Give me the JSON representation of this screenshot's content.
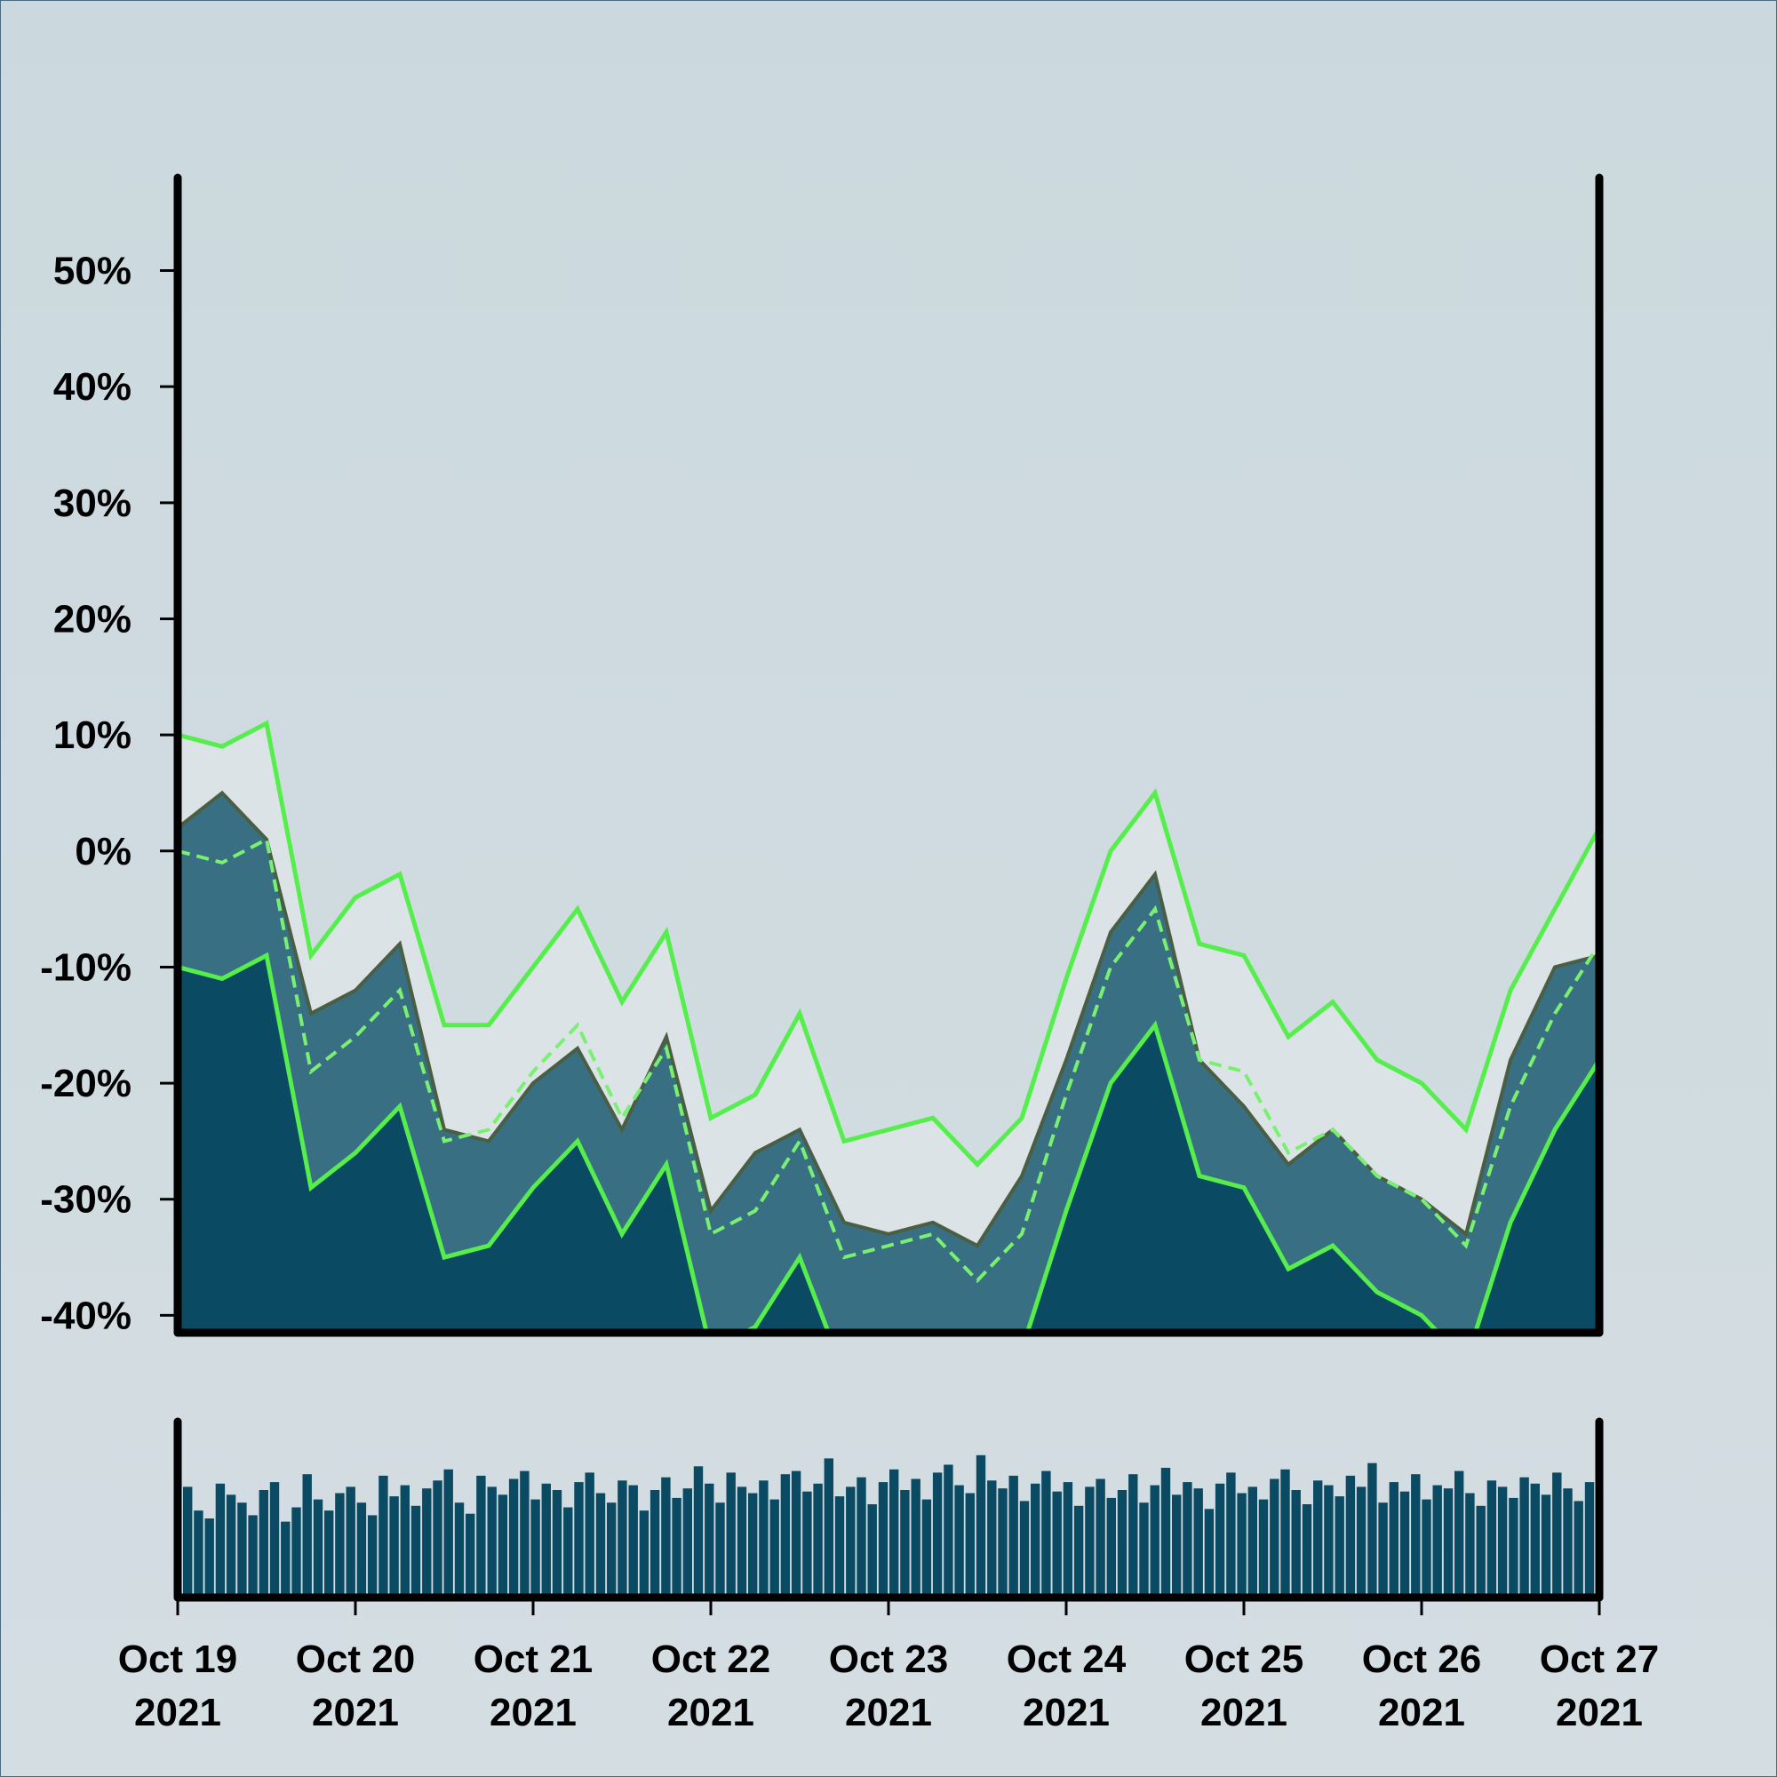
{
  "chart_data": [
    {
      "type": "area",
      "title": "",
      "xlabel": "",
      "ylabel": "",
      "ylim": [
        -41.5,
        58
      ],
      "y_ticks": [
        "-40%",
        "-30%",
        "-20%",
        "-10%",
        "0%",
        "10%",
        "20%",
        "30%",
        "40%",
        "50%"
      ],
      "y_tick_values": [
        -40,
        -30,
        -20,
        -10,
        0,
        10,
        20,
        30,
        40,
        50
      ],
      "x_ticks": [
        {
          "line1": "Oct 19",
          "line2": "2021"
        },
        {
          "line1": "Oct 20",
          "line2": "2021"
        },
        {
          "line1": "Oct 21",
          "line2": "2021"
        },
        {
          "line1": "Oct 22",
          "line2": "2021"
        },
        {
          "line1": "Oct 23",
          "line2": "2021"
        },
        {
          "line1": "Oct 24",
          "line2": "2021"
        },
        {
          "line1": "Oct 25",
          "line2": "2021"
        },
        {
          "line1": "Oct 26",
          "line2": "2021"
        },
        {
          "line1": "Oct 27",
          "line2": "2021"
        }
      ],
      "x_tick_values": [
        "2021-10-19",
        "2021-10-20",
        "2021-10-21",
        "2021-10-22",
        "2021-10-23",
        "2021-10-24",
        "2021-10-25",
        "2021-10-26",
        "2021-10-27"
      ],
      "grid": false,
      "colors": {
        "price_fill": "#386f82",
        "price_line": "#4a5e44",
        "band_fill": "#dce3e6",
        "lower_fill": "#0a4a62",
        "band_line": "#55ee4d",
        "mid_line": "#7af072"
      },
      "x": [
        "2021-10-19 00:00",
        "2021-10-19 06:00",
        "2021-10-19 12:00",
        "2021-10-19 18:00",
        "2021-10-20 00:00",
        "2021-10-20 06:00",
        "2021-10-20 12:00",
        "2021-10-20 18:00",
        "2021-10-21 00:00",
        "2021-10-21 06:00",
        "2021-10-21 12:00",
        "2021-10-21 18:00",
        "2021-10-22 00:00",
        "2021-10-22 06:00",
        "2021-10-22 12:00",
        "2021-10-22 18:00",
        "2021-10-23 00:00",
        "2021-10-23 06:00",
        "2021-10-23 12:00",
        "2021-10-23 18:00",
        "2021-10-24 00:00",
        "2021-10-24 06:00",
        "2021-10-24 12:00",
        "2021-10-24 18:00",
        "2021-10-25 00:00",
        "2021-10-25 06:00",
        "2021-10-25 12:00",
        "2021-10-25 18:00",
        "2021-10-26 00:00",
        "2021-10-26 06:00",
        "2021-10-26 12:00",
        "2021-10-26 18:00",
        "2021-10-27 00:00"
      ],
      "series": [
        {
          "values": [
            2,
            5,
            1,
            -14,
            -12,
            -8,
            -24,
            -25,
            -20,
            -17,
            -24,
            -16,
            -31,
            -26,
            -24,
            -32,
            -33,
            -32,
            -34,
            -28,
            -18,
            -7,
            -2,
            -18,
            -22,
            -27,
            -24,
            -28,
            -30,
            -33,
            -18,
            -10,
            -9
          ]
        },
        {
          "values": [
            0,
            -1,
            1,
            -19,
            -16,
            -12,
            -25,
            -24,
            -19,
            -15,
            -23,
            -17,
            -33,
            -31,
            -25,
            -35,
            -34,
            -33,
            -37,
            -33,
            -21,
            -10,
            -5,
            -18,
            -19,
            -26,
            -24,
            -28,
            -30,
            -34,
            -22,
            -14,
            -8
          ]
        },
        {
          "values": [
            10,
            9,
            11,
            -9,
            -4,
            -2,
            -15,
            -15,
            -10,
            -5,
            -13,
            -7,
            -23,
            -21,
            -14,
            -25,
            -24,
            -23,
            -27,
            -23,
            -11,
            0,
            5,
            -8,
            -9,
            -16,
            -13,
            -18,
            -20,
            -24,
            -12,
            -5,
            2
          ]
        },
        {
          "values": [
            -10,
            -11,
            -9,
            -29,
            -26,
            -22,
            -35,
            -34,
            -29,
            -25,
            -33,
            -27,
            -43,
            -41,
            -35,
            -45,
            -44,
            -43,
            -47,
            -43,
            -31,
            -20,
            -15,
            -28,
            -29,
            -36,
            -34,
            -38,
            -40,
            -44,
            -32,
            -24,
            -18
          ]
        }
      ]
    },
    {
      "type": "bar",
      "title": "",
      "xlabel": "",
      "ylabel": "",
      "color": "#0a4a62",
      "ylim": [
        0,
        1
      ],
      "values": [
        0.7,
        0.55,
        0.5,
        0.72,
        0.65,
        0.6,
        0.52,
        0.68,
        0.73,
        0.48,
        0.57,
        0.78,
        0.62,
        0.55,
        0.66,
        0.7,
        0.6,
        0.52,
        0.77,
        0.64,
        0.71,
        0.58,
        0.69,
        0.74,
        0.81,
        0.6,
        0.53,
        0.77,
        0.7,
        0.65,
        0.75,
        0.8,
        0.62,
        0.72,
        0.68,
        0.57,
        0.73,
        0.79,
        0.66,
        0.6,
        0.74,
        0.71,
        0.55,
        0.68,
        0.76,
        0.63,
        0.69,
        0.83,
        0.72,
        0.6,
        0.79,
        0.7,
        0.66,
        0.74,
        0.62,
        0.78,
        0.8,
        0.67,
        0.72,
        0.88,
        0.64,
        0.7,
        0.76,
        0.59,
        0.73,
        0.81,
        0.68,
        0.75,
        0.62,
        0.79,
        0.84,
        0.71,
        0.66,
        0.9,
        0.74,
        0.69,
        0.77,
        0.61,
        0.72,
        0.8,
        0.67,
        0.73,
        0.58,
        0.7,
        0.75,
        0.63,
        0.68,
        0.78,
        0.6,
        0.71,
        0.82,
        0.65,
        0.73,
        0.69,
        0.56,
        0.72,
        0.79,
        0.66,
        0.7,
        0.62,
        0.75,
        0.81,
        0.68,
        0.59,
        0.74,
        0.71,
        0.64,
        0.77,
        0.7,
        0.85,
        0.6,
        0.73,
        0.67,
        0.78,
        0.62,
        0.71,
        0.69,
        0.8,
        0.66,
        0.58,
        0.74,
        0.7,
        0.63,
        0.76,
        0.72,
        0.65,
        0.79,
        0.69,
        0.61,
        0.73
      ]
    }
  ]
}
